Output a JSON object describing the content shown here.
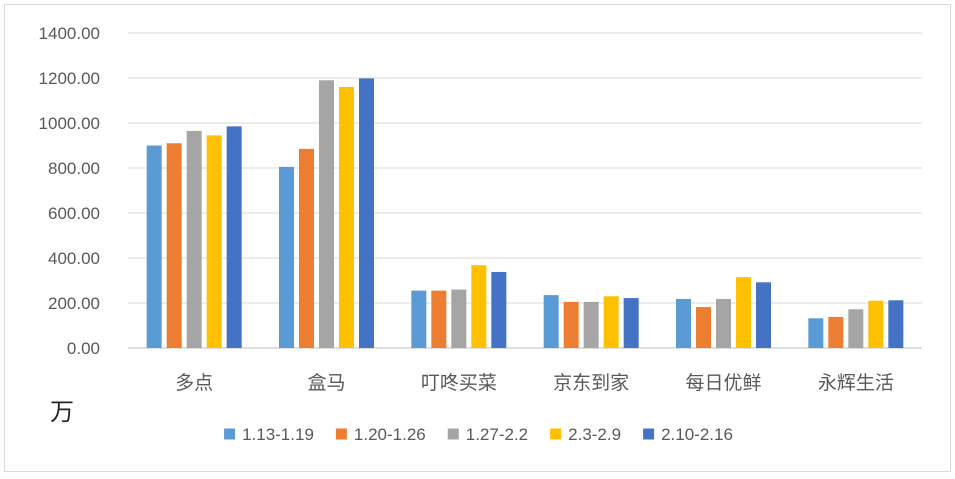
{
  "chart_data": {
    "type": "bar",
    "unit_label": "万",
    "categories": [
      "多点",
      "盒马",
      "叮咚买菜",
      "京东到家",
      "每日优鲜",
      "永辉生活"
    ],
    "series": [
      {
        "name": "1.13-1.19",
        "color": "#5b9bd5",
        "values": [
          900,
          805,
          255,
          235,
          218,
          132
        ]
      },
      {
        "name": "1.20-1.26",
        "color": "#ed7d31",
        "values": [
          910,
          885,
          255,
          205,
          182,
          138
        ]
      },
      {
        "name": "1.27-2.2",
        "color": "#a5a5a5",
        "values": [
          965,
          1190,
          260,
          205,
          218,
          172
        ]
      },
      {
        "name": "2.3-2.9",
        "color": "#ffc000",
        "values": [
          945,
          1160,
          368,
          230,
          315,
          210
        ]
      },
      {
        "name": "2.10-2.16",
        "color": "#4472c4",
        "values": [
          985,
          1198,
          338,
          222,
          292,
          212
        ]
      }
    ],
    "ylim": [
      0,
      1400
    ],
    "yticks": [
      "0.00",
      "200.00",
      "400.00",
      "600.00",
      "800.00",
      "1000.00",
      "1200.00",
      "1400.00"
    ],
    "grid": true,
    "legend_position": "bottom"
  }
}
